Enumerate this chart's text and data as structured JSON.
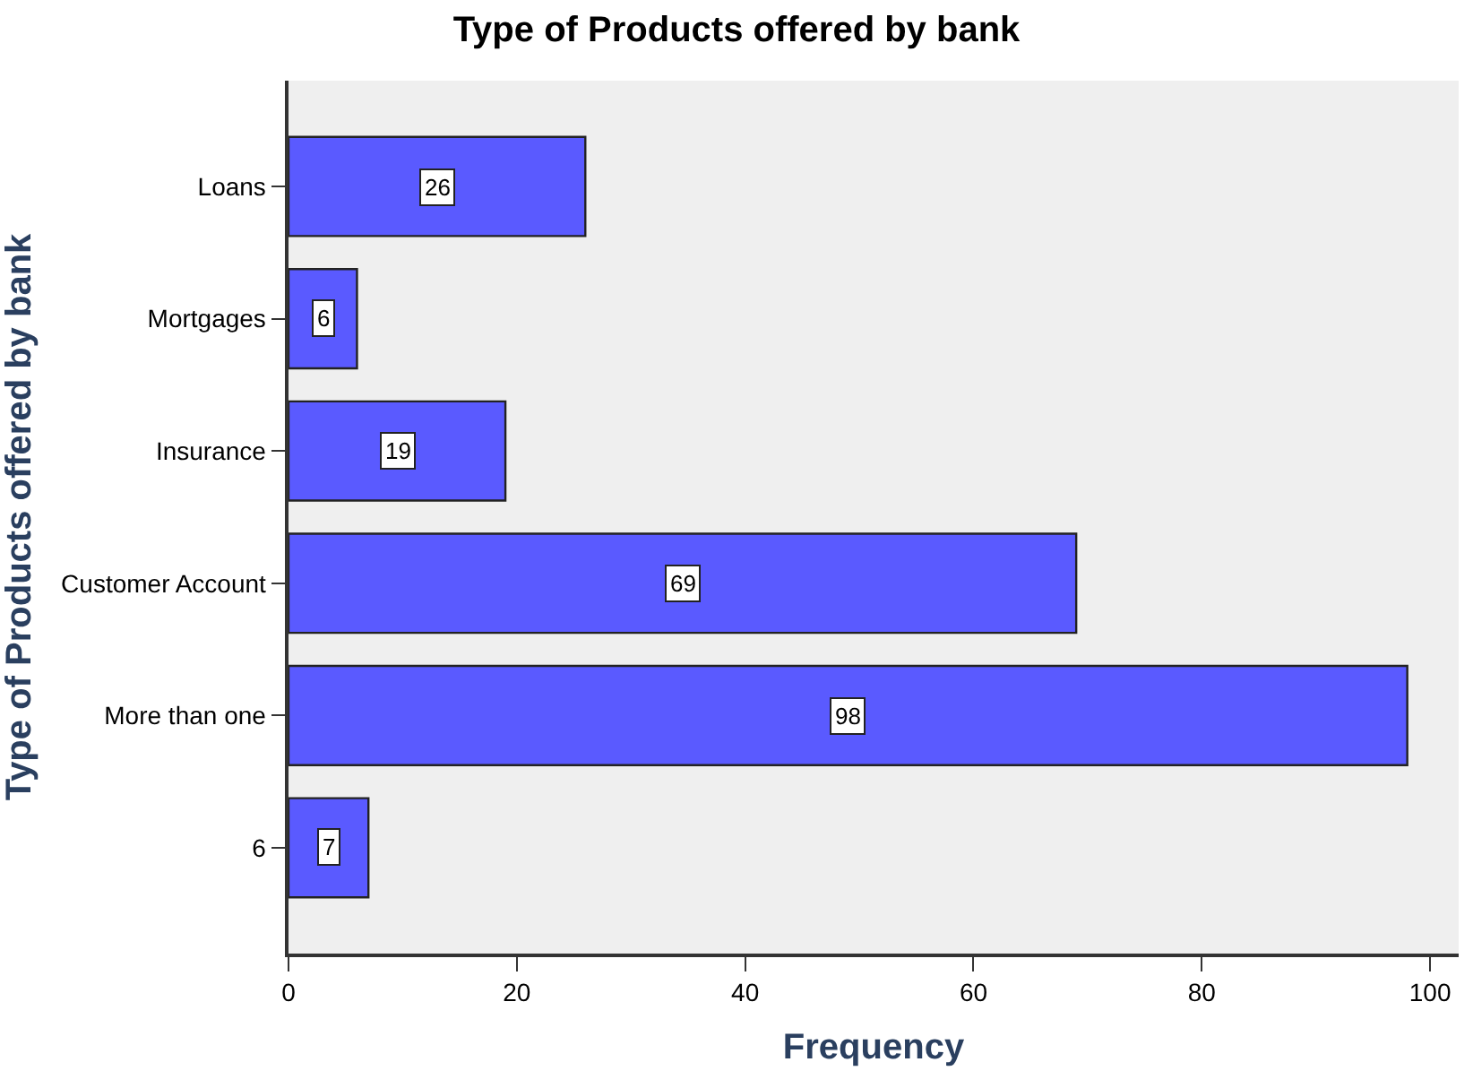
{
  "chart_data": {
    "type": "bar",
    "orientation": "horizontal",
    "title": "Type of Products offered by bank",
    "xlabel": "Frequency",
    "ylabel": "Type of Products offered by bank",
    "categories": [
      "Loans",
      "Mortgages",
      "Insurance",
      "Customer Account",
      "More than one",
      "6"
    ],
    "values": [
      26,
      6,
      19,
      69,
      98,
      7
    ],
    "color": "#5a5aff",
    "xlim": [
      0,
      102.5
    ],
    "xticks": [
      0,
      20,
      40,
      60,
      80,
      100
    ],
    "grid": false,
    "legend": false,
    "data_labels": true
  }
}
